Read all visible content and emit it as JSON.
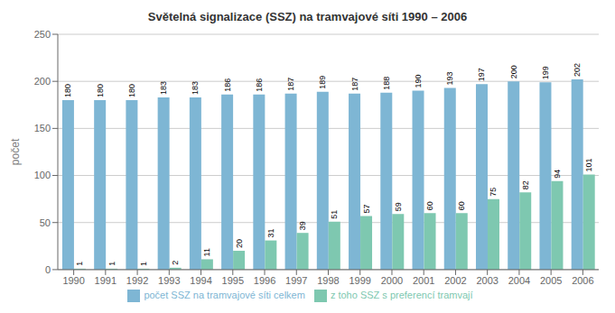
{
  "chart_data": {
    "type": "bar",
    "title": "Světelná signalizace (SSZ) na tramvajové síti 1990 – 2006",
    "ylabel": "počet",
    "categories": [
      "1990",
      "1991",
      "1992",
      "1993",
      "1994",
      "1995",
      "1996",
      "1997",
      "1998",
      "1999",
      "2000",
      "2001",
      "2002",
      "2003",
      "2004",
      "2005",
      "2006"
    ],
    "series": [
      {
        "name": "počet SSZ na tramvajové síti celkem",
        "color": "#7EB6D4",
        "values": [
          180,
          180,
          180,
          183,
          183,
          186,
          186,
          187,
          189,
          187,
          188,
          190,
          193,
          197,
          200,
          199,
          202
        ]
      },
      {
        "name": "z toho SSZ s preferencí tramvají",
        "color": "#7EC8B0",
        "values": [
          1,
          1,
          1,
          2,
          11,
          20,
          31,
          39,
          51,
          57,
          59,
          60,
          60,
          75,
          82,
          94,
          101
        ]
      }
    ],
    "ylim": [
      0,
      250
    ],
    "yticks": [
      0,
      50,
      100,
      150,
      200,
      250
    ],
    "grid": true,
    "data_labels": true,
    "legend": "bottom"
  }
}
